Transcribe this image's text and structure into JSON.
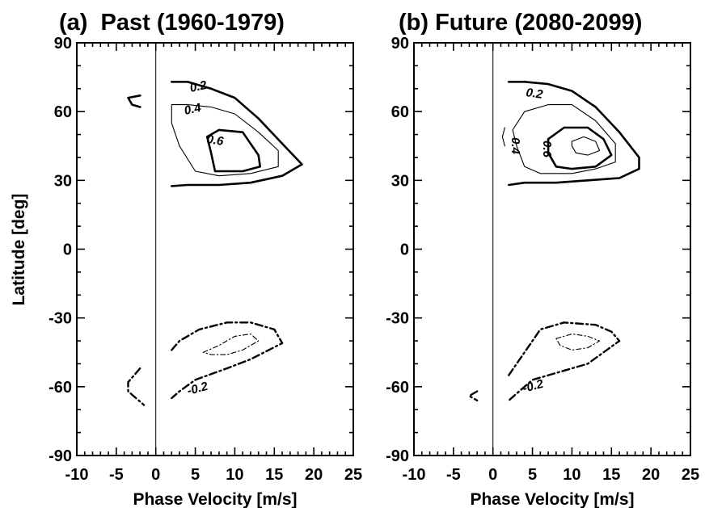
{
  "chart_data": [
    {
      "type": "contour",
      "title": "(a)  Past (1960-1979)",
      "xlabel": "Phase Velocity [m/s]",
      "ylabel": "Latitude [deg]",
      "xlim": [
        -10,
        25
      ],
      "ylim": [
        -90,
        90
      ],
      "xticks": [
        "-10",
        "-5",
        "0",
        "5",
        "10",
        "15",
        "20",
        "25"
      ],
      "yticks": [
        "90",
        "60",
        "30",
        "0",
        "-30",
        "-60",
        "-90"
      ],
      "grid": false,
      "contour_labels": [
        "0.2",
        "0.4",
        "0.6",
        "-0.2"
      ],
      "contours": [
        {
          "level": 0.2,
          "style": "solid-thick",
          "points": [
            [
              2,
              73
            ],
            [
              4,
              73
            ],
            [
              7,
              70
            ],
            [
              10,
              66
            ],
            [
              13,
              57
            ],
            [
              16,
              46
            ],
            [
              18.5,
              37
            ],
            [
              16,
              32
            ],
            [
              12,
              29
            ],
            [
              8,
              28
            ],
            [
              4,
              28
            ],
            [
              2,
              27.5
            ]
          ]
        },
        {
          "level": 0.4,
          "style": "solid-thin",
          "points": [
            [
              2,
              63
            ],
            [
              4,
              63
            ],
            [
              7,
              62
            ],
            [
              10,
              59
            ],
            [
              13,
              51
            ],
            [
              15.5,
              43
            ],
            [
              15.5,
              36
            ],
            [
              12,
              33
            ],
            [
              8,
              32
            ],
            [
              5,
              34
            ],
            [
              3,
              45
            ],
            [
              2,
              55
            ],
            [
              2,
              63
            ]
          ]
        },
        {
          "level": 0.6,
          "style": "solid-thick",
          "points": [
            [
              8,
              52
            ],
            [
              11,
              51
            ],
            [
              13,
              41
            ],
            [
              13.2,
              36
            ],
            [
              11,
              34
            ],
            [
              9,
              34
            ],
            [
              7.5,
              34
            ],
            [
              7,
              42
            ],
            [
              6.5,
              49
            ],
            [
              8,
              52
            ]
          ]
        },
        {
          "level": 0.2,
          "style": "solid-thick",
          "points": [
            [
              -2,
              67
            ],
            [
              -3.5,
              66
            ],
            [
              -3,
              63
            ],
            [
              -2,
              62
            ]
          ]
        },
        {
          "level": -0.2,
          "style": "dashdot-thick",
          "points": [
            [
              2,
              -44
            ],
            [
              3,
              -40
            ],
            [
              5.5,
              -35
            ],
            [
              9,
              -32
            ],
            [
              12,
              -32
            ],
            [
              15,
              -35
            ],
            [
              16,
              -41
            ],
            [
              12,
              -48
            ],
            [
              9,
              -52
            ],
            [
              5,
              -57
            ],
            [
              3,
              -62
            ],
            [
              2,
              -65
            ]
          ]
        },
        {
          "level": -0.4,
          "style": "dashdot-thin",
          "points": [
            [
              6,
              -45
            ],
            [
              8,
              -42
            ],
            [
              10,
              -38
            ],
            [
              12,
              -37
            ],
            [
              13,
              -40
            ],
            [
              11,
              -44
            ],
            [
              9,
              -46
            ],
            [
              7,
              -46
            ],
            [
              6,
              -45
            ]
          ]
        },
        {
          "level": -0.2,
          "style": "dashdot-thick",
          "points": [
            [
              -2,
              -52
            ],
            [
              -3.5,
              -58
            ],
            [
              -3.5,
              -62
            ],
            [
              -2.5,
              -65
            ],
            [
              -1.5,
              -68
            ]
          ]
        }
      ]
    },
    {
      "type": "contour",
      "title": "(b) Future (2080-2099)",
      "xlabel": "Phase Velocity [m/s]",
      "ylabel": "",
      "xlim": [
        -10,
        25
      ],
      "ylim": [
        -90,
        90
      ],
      "xticks": [
        "-10",
        "-5",
        "0",
        "5",
        "10",
        "15",
        "20",
        "25"
      ],
      "yticks": [
        "90",
        "60",
        "30",
        "0",
        "-30",
        "-60",
        "-90"
      ],
      "grid": false,
      "contour_labels": [
        "0.2",
        "0.4",
        "0.6",
        "-0.2"
      ],
      "contours": [
        {
          "level": 0.2,
          "style": "solid-thick",
          "points": [
            [
              2,
              73
            ],
            [
              4,
              73
            ],
            [
              7,
              72
            ],
            [
              10,
              69
            ],
            [
              13,
              62
            ],
            [
              16,
              51
            ],
            [
              18.5,
              40
            ],
            [
              18.5,
              35
            ],
            [
              16,
              31
            ],
            [
              12,
              30
            ],
            [
              8,
              29
            ],
            [
              4,
              29
            ],
            [
              2,
              28
            ]
          ]
        },
        {
          "level": 0.4,
          "style": "solid-thin",
          "points": [
            [
              2.5,
              52
            ],
            [
              4,
              60
            ],
            [
              7,
              63
            ],
            [
              10,
              63
            ],
            [
              13,
              56
            ],
            [
              15.5,
              46
            ],
            [
              15.5,
              38
            ],
            [
              13,
              35
            ],
            [
              10,
              33
            ],
            [
              6,
              33
            ],
            [
              4,
              36
            ],
            [
              3,
              45
            ],
            [
              2.5,
              52
            ]
          ]
        },
        {
          "level": 0.6,
          "style": "solid-thick",
          "points": [
            [
              7,
              48
            ],
            [
              9,
              53
            ],
            [
              12,
              53
            ],
            [
              14,
              48
            ],
            [
              15,
              41
            ],
            [
              13,
              36
            ],
            [
              10,
              35
            ],
            [
              8,
              36
            ],
            [
              7,
              42
            ],
            [
              7,
              48
            ]
          ]
        },
        {
          "level": 0.8,
          "style": "solid-thin",
          "points": [
            [
              10,
              47
            ],
            [
              11.5,
              49
            ],
            [
              13,
              47
            ],
            [
              13.5,
              43
            ],
            [
              12,
              41
            ],
            [
              10.5,
              42
            ],
            [
              10,
              45
            ],
            [
              10,
              47
            ]
          ]
        },
        {
          "level": 0.4,
          "style": "solid-thin",
          "points": [
            [
              1.5,
              53
            ],
            [
              1.2,
              49
            ],
            [
              1.5,
              45
            ]
          ]
        },
        {
          "level": -0.2,
          "style": "dashdot-thick",
          "points": [
            [
              2,
              -55
            ],
            [
              3,
              -50
            ],
            [
              5,
              -40
            ],
            [
              6,
              -35
            ],
            [
              9,
              -32
            ],
            [
              13,
              -33
            ],
            [
              15,
              -36
            ],
            [
              16,
              -40
            ],
            [
              12,
              -50
            ],
            [
              8,
              -54
            ],
            [
              5,
              -57
            ],
            [
              3,
              -63
            ],
            [
              2,
              -66
            ]
          ]
        },
        {
          "level": -0.4,
          "style": "dashdot-thin",
          "points": [
            [
              8,
              -39
            ],
            [
              10,
              -37
            ],
            [
              12,
              -38
            ],
            [
              13.5,
              -40
            ],
            [
              12,
              -43
            ],
            [
              10,
              -44
            ],
            [
              8.5,
              -42
            ],
            [
              8,
              -39
            ]
          ]
        },
        {
          "level": -0.2,
          "style": "dashdot-thick",
          "points": [
            [
              -2,
              -62
            ],
            [
              -3,
              -64
            ],
            [
              -2,
              -66
            ]
          ]
        }
      ]
    }
  ]
}
